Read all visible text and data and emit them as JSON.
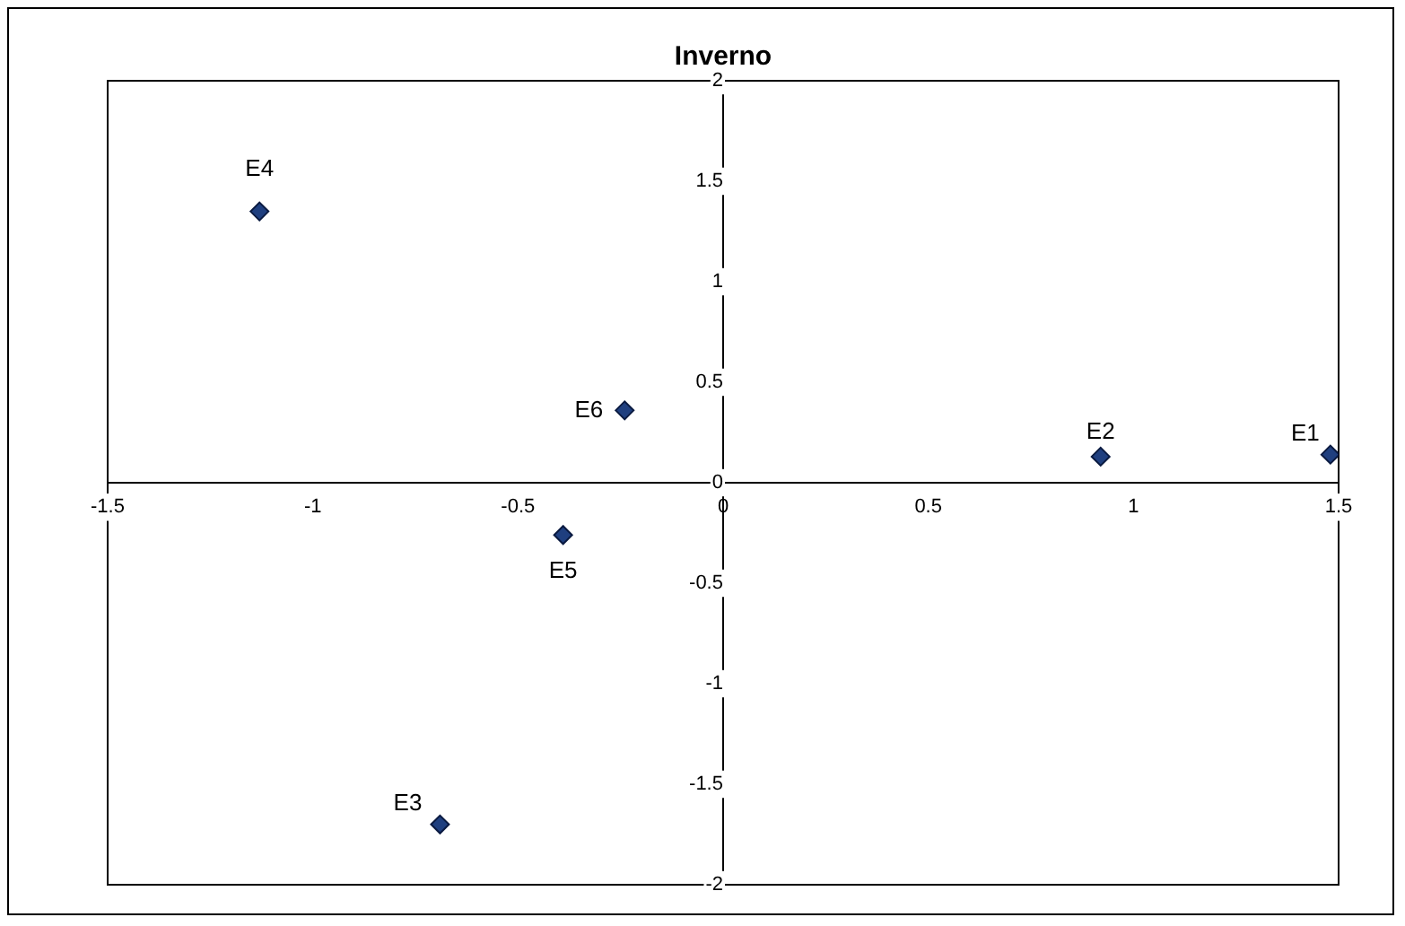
{
  "chart_data": {
    "type": "scatter",
    "title": "Inverno",
    "series": [
      {
        "color": "#1f3f7f",
        "x": [
          1.48,
          0.92,
          -0.69,
          -1.13,
          -0.39,
          -0.24
        ],
        "values": [
          0.14,
          0.13,
          -1.7,
          1.35,
          -0.26,
          0.36
        ]
      }
    ],
    "xlim": [
      -1.5,
      1.5
    ],
    "xticks": [
      -1.5,
      -1,
      -0.5,
      0,
      0.5,
      1,
      1.5
    ],
    "ylim": [
      -2,
      2
    ],
    "yticks": [
      -2,
      -1.5,
      -1,
      -0.5,
      0,
      0.5,
      1,
      1.5,
      2
    ],
    "grid": false,
    "legend": false,
    "marker": "diamond",
    "annotations": [
      {
        "text": "E1",
        "x": 1.48,
        "y": 0.14
      },
      {
        "text": "E2",
        "x": 0.92,
        "y": 0.13
      },
      {
        "text": "E3",
        "x": -0.69,
        "y": -1.7
      },
      {
        "text": "E4",
        "x": -1.13,
        "y": 1.35
      },
      {
        "text": "E5",
        "x": -0.39,
        "y": -0.26
      },
      {
        "text": "E6",
        "x": -0.24,
        "y": 0.36
      }
    ]
  }
}
